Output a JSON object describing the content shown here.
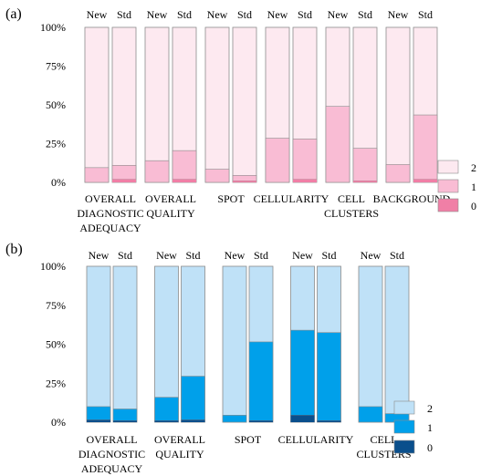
{
  "chart_data": [
    {
      "type": "bar",
      "stacked": true,
      "panel_label": "(a)",
      "yticks": [
        "0%",
        "25%",
        "50%",
        "75%",
        "100%"
      ],
      "ylim": [
        0,
        100
      ],
      "column_labels": [
        "New",
        "Std"
      ],
      "categories": [
        [
          "OVERALL",
          "DIAGNOSTIC",
          "ADEQUACY"
        ],
        [
          "OVERALL",
          "QUALITY"
        ],
        [
          "SPOT"
        ],
        [
          "CELLULARITY"
        ],
        [
          "CELL",
          "CLUSTERS"
        ],
        [
          "BACKGROUND"
        ]
      ],
      "legend": [
        "2",
        "1",
        "0"
      ],
      "legend_position": "right",
      "colors": {
        "2": "#fde9f0",
        "1": "#f9bcd4",
        "0": "#f07fa6"
      },
      "series": [
        {
          "name": "0",
          "new": [
            0,
            0,
            0,
            0,
            0,
            0
          ],
          "std": [
            2,
            2,
            1,
            2,
            1,
            2
          ]
        },
        {
          "name": "1",
          "new": [
            9.5,
            14,
            8.5,
            28.5,
            49,
            11.5
          ],
          "std": [
            9,
            18.5,
            3.5,
            26,
            21,
            41.5
          ]
        }
      ]
    },
    {
      "type": "bar",
      "stacked": true,
      "panel_label": "(b)",
      "yticks": [
        "0%",
        "25%",
        "50%",
        "75%",
        "100%"
      ],
      "ylim": [
        0,
        100
      ],
      "column_labels": [
        "New",
        "Std"
      ],
      "categories": [
        [
          "OVERALL",
          "DIAGNOSTIC",
          "ADEQUACY"
        ],
        [
          "OVERALL",
          "QUALITY"
        ],
        [
          "SPOT"
        ],
        [
          "CELLULARITY"
        ],
        [
          "CELL",
          "CLUSTERS"
        ]
      ],
      "legend": [
        "2",
        "1",
        "0"
      ],
      "legend_position": "right",
      "colors": {
        "2": "#bfe1f7",
        "1": "#00a0ea",
        "0": "#0a4f8c"
      },
      "series": [
        {
          "name": "0",
          "new": [
            1.5,
            1,
            0,
            4.5,
            0
          ],
          "std": [
            1,
            1.5,
            1,
            1,
            0
          ]
        },
        {
          "name": "1",
          "new": [
            8.5,
            15,
            4.5,
            54.5,
            10
          ],
          "std": [
            7.5,
            28,
            50.5,
            56.5,
            5.5
          ]
        }
      ]
    }
  ]
}
